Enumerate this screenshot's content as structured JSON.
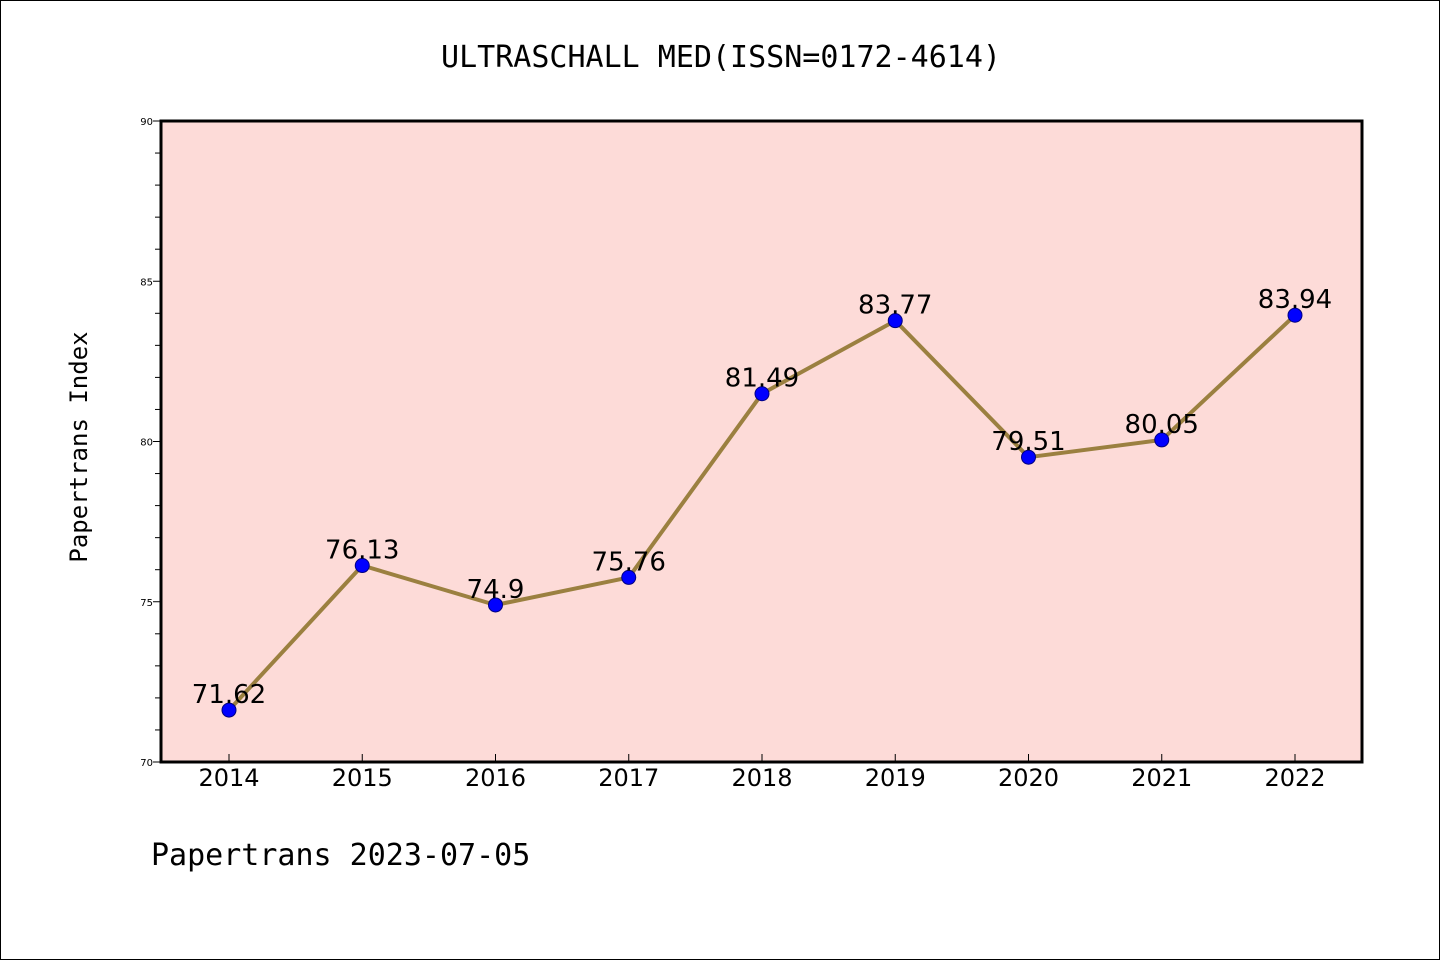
{
  "footer": "Papertrans 2023-07-05",
  "chart_data": {
    "type": "line",
    "title": "ULTRASCHALL MED(ISSN=0172-4614)",
    "xlabel": "",
    "ylabel": "Papertrans Index",
    "categories": [
      "2014",
      "2015",
      "2016",
      "2017",
      "2018",
      "2019",
      "2020",
      "2021",
      "2022"
    ],
    "values": [
      71.62,
      76.13,
      74.9,
      75.76,
      81.49,
      83.77,
      79.51,
      80.05,
      83.94
    ],
    "data_labels": [
      "71.62",
      "76.13",
      "74.9",
      "75.76",
      "81.49",
      "83.77",
      "79.51",
      "80.05",
      "83.94"
    ],
    "ylim": [
      70,
      90
    ],
    "yticks": [
      70,
      75,
      80,
      85,
      90
    ],
    "grid": false,
    "legend": "none",
    "colors": {
      "plot_background": "#fddbd8",
      "line": "#9b8040",
      "marker": "#0000ff",
      "marker_edge": "#000080"
    }
  }
}
